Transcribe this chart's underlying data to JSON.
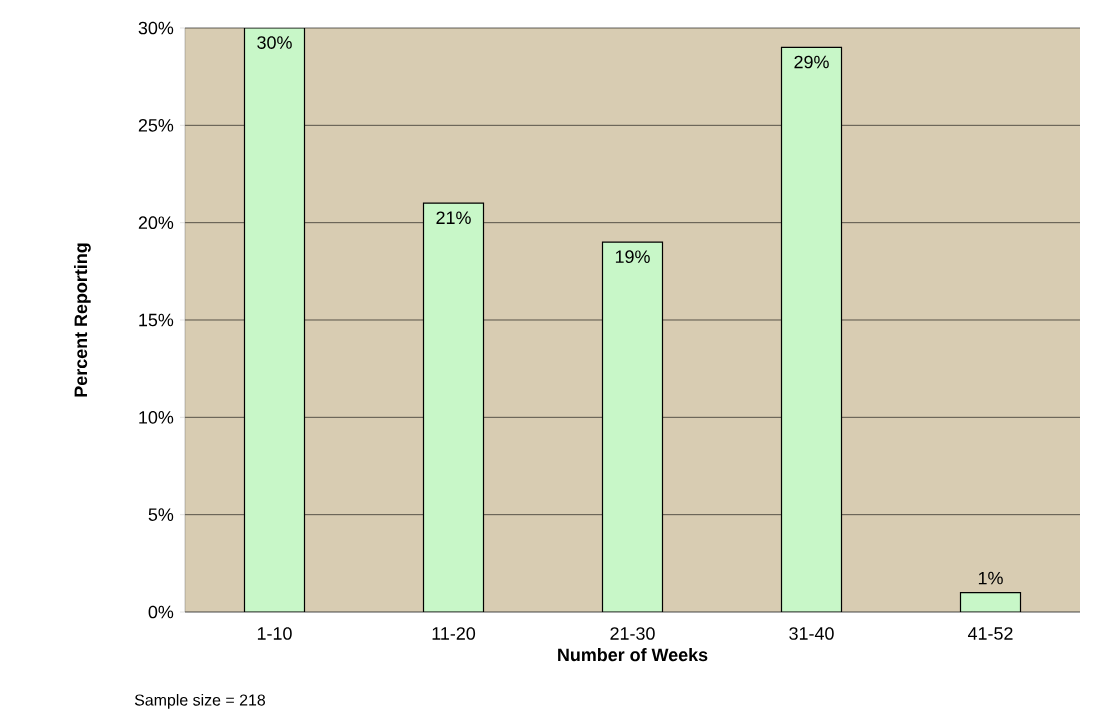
{
  "chart_data": {
    "type": "bar",
    "xlabel": "Number of Weeks",
    "ylabel": "Percent Reporting",
    "categories": [
      "1-10",
      "11-20",
      "21-30",
      "31-40",
      "41-52"
    ],
    "values": [
      30,
      21,
      19,
      29,
      1
    ],
    "value_labels": [
      "30%",
      "21%",
      "19%",
      "29%",
      "1%"
    ],
    "color": "#c8f7c8",
    "ylim": [
      0,
      30
    ],
    "yticks": [
      {
        "value": 0,
        "label": "0%"
      },
      {
        "value": 5,
        "label": "5%"
      },
      {
        "value": 10,
        "label": "10%"
      },
      {
        "value": 15,
        "label": "15%"
      },
      {
        "value": 20,
        "label": "20%"
      },
      {
        "value": 25,
        "label": "25%"
      },
      {
        "value": 30,
        "label": "30%"
      }
    ],
    "grid": "y",
    "annotations": [
      "Sample size = 218"
    ]
  }
}
